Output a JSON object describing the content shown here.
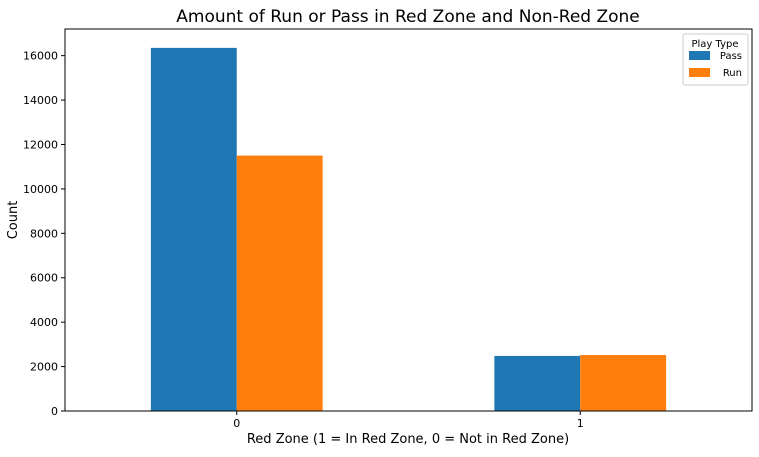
{
  "chart_data": {
    "type": "bar",
    "title": "Amount of Run or Pass in Red Zone and Non-Red Zone",
    "xlabel": "Red Zone (1 = In Red Zone, 0 = Not in Red Zone)",
    "ylabel": "Count",
    "categories": [
      "0",
      "1"
    ],
    "series": [
      {
        "name": "Pass",
        "color": "#1f77b4",
        "values": [
          16350,
          2480
        ]
      },
      {
        "name": "Run",
        "color": "#ff7f0e",
        "values": [
          11500,
          2520
        ]
      }
    ],
    "ylim": [
      0,
      17200
    ],
    "yticks": [
      0,
      2000,
      4000,
      6000,
      8000,
      10000,
      12000,
      14000,
      16000
    ],
    "legend": {
      "title": "Play Type",
      "position": "top-right"
    },
    "grid": false
  }
}
